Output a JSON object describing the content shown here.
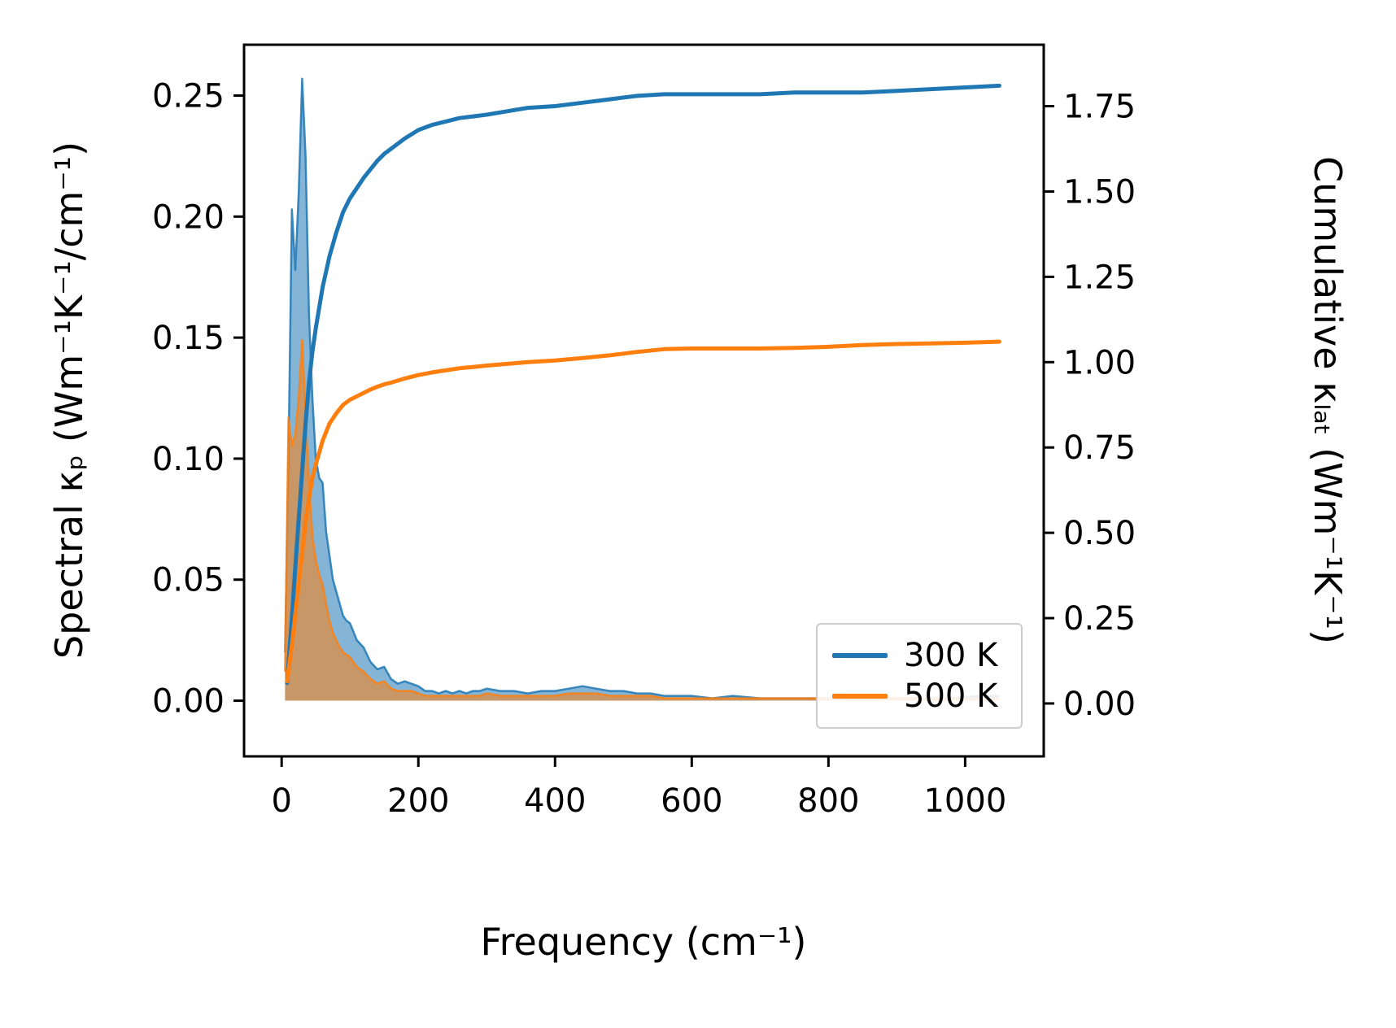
{
  "figure": {
    "background": "#ffffff"
  },
  "chart_data": {
    "type": "line+area",
    "title": "",
    "xlabel": "Frequency (cm⁻¹)",
    "ylabel_left": "Spectral κₚ (Wm⁻¹K⁻¹/cm⁻¹)",
    "ylabel_right": "Cumulative κₗₐₜ (Wm⁻¹K⁻¹)",
    "grid": false,
    "xlim": [
      -55,
      1115
    ],
    "ylim_left": [
      -0.023,
      0.271
    ],
    "ylim_right": [
      -0.155,
      1.93
    ],
    "x_ticks": [
      0,
      200,
      400,
      600,
      800,
      1000
    ],
    "x_tick_labels": [
      "0",
      "200",
      "400",
      "600",
      "800",
      "1000"
    ],
    "y_ticks_left": [
      0.0,
      0.05,
      0.1,
      0.15,
      0.2,
      0.25
    ],
    "y_tick_labels_left": [
      "0.00",
      "0.05",
      "0.10",
      "0.15",
      "0.20",
      "0.25"
    ],
    "y_ticks_right": [
      0.0,
      0.25,
      0.5,
      0.75,
      1.0,
      1.25,
      1.5,
      1.75
    ],
    "y_tick_labels_right": [
      "0.00",
      "0.25",
      "0.50",
      "0.75",
      "1.00",
      "1.25",
      "1.50",
      "1.75"
    ],
    "legend": {
      "position": "lower right",
      "entries": [
        {
          "label": "300 K",
          "color": "#1f77b4"
        },
        {
          "label": "500 K",
          "color": "#ff7f0e"
        }
      ]
    },
    "series": [
      {
        "name": "300 K spectral",
        "axis": "left",
        "style": "area",
        "color": "#1f77b4",
        "fill_opacity": 0.55,
        "x": [
          5,
          10,
          15,
          20,
          25,
          30,
          35,
          40,
          45,
          50,
          55,
          60,
          65,
          70,
          75,
          80,
          85,
          90,
          95,
          100,
          110,
          120,
          130,
          140,
          150,
          160,
          170,
          180,
          190,
          200,
          210,
          220,
          230,
          240,
          250,
          260,
          270,
          280,
          290,
          300,
          320,
          340,
          360,
          380,
          400,
          420,
          440,
          460,
          480,
          500,
          520,
          540,
          560,
          580,
          600,
          630,
          660,
          700,
          740,
          780,
          820,
          860,
          900,
          940,
          980,
          1020,
          1050
        ],
        "y": [
          0.02,
          0.1,
          0.203,
          0.178,
          0.21,
          0.257,
          0.225,
          0.16,
          0.125,
          0.1,
          0.092,
          0.09,
          0.07,
          0.06,
          0.05,
          0.045,
          0.04,
          0.035,
          0.033,
          0.032,
          0.025,
          0.022,
          0.016,
          0.013,
          0.014,
          0.009,
          0.007,
          0.008,
          0.007,
          0.006,
          0.004,
          0.004,
          0.003,
          0.004,
          0.003,
          0.004,
          0.003,
          0.004,
          0.004,
          0.005,
          0.004,
          0.004,
          0.003,
          0.004,
          0.004,
          0.005,
          0.006,
          0.005,
          0.004,
          0.004,
          0.003,
          0.003,
          0.002,
          0.002,
          0.002,
          0.001,
          0.002,
          0.001,
          0.001,
          0.001,
          0.001,
          0.001,
          0.001,
          0.001,
          0.001,
          0.002,
          0.002
        ]
      },
      {
        "name": "500 K spectral",
        "axis": "left",
        "style": "area",
        "color": "#ff7f0e",
        "fill_opacity": 0.55,
        "x": [
          5,
          10,
          15,
          20,
          25,
          30,
          35,
          40,
          45,
          50,
          55,
          60,
          65,
          70,
          75,
          80,
          85,
          90,
          95,
          100,
          110,
          120,
          130,
          140,
          150,
          160,
          170,
          180,
          190,
          200,
          210,
          220,
          230,
          240,
          250,
          260,
          270,
          280,
          290,
          300,
          320,
          340,
          360,
          380,
          400,
          420,
          440,
          460,
          480,
          500,
          520,
          540,
          560,
          580,
          600,
          630,
          660,
          700,
          740,
          780,
          820,
          860,
          900,
          940,
          980,
          1020,
          1050
        ],
        "y": [
          0.012,
          0.117,
          0.105,
          0.11,
          0.125,
          0.149,
          0.118,
          0.09,
          0.068,
          0.058,
          0.052,
          0.048,
          0.04,
          0.033,
          0.028,
          0.025,
          0.022,
          0.02,
          0.019,
          0.018,
          0.014,
          0.012,
          0.009,
          0.007,
          0.008,
          0.005,
          0.004,
          0.004,
          0.004,
          0.003,
          0.002,
          0.002,
          0.002,
          0.002,
          0.002,
          0.002,
          0.002,
          0.002,
          0.002,
          0.003,
          0.002,
          0.002,
          0.002,
          0.002,
          0.002,
          0.003,
          0.003,
          0.003,
          0.002,
          0.002,
          0.002,
          0.002,
          0.001,
          0.001,
          0.001,
          0.001,
          0.001,
          0.001,
          0.001,
          0.001,
          0.001,
          0.001,
          0.001,
          0.001,
          0.001,
          0.001,
          0.001
        ]
      },
      {
        "name": "300 K cumulative",
        "axis": "right",
        "style": "line",
        "color": "#1f77b4",
        "x": [
          8,
          15,
          20,
          25,
          30,
          35,
          40,
          45,
          50,
          60,
          70,
          80,
          90,
          100,
          110,
          120,
          130,
          140,
          150,
          160,
          180,
          200,
          220,
          240,
          260,
          280,
          300,
          330,
          360,
          400,
          440,
          480,
          520,
          560,
          600,
          650,
          700,
          750,
          800,
          850,
          900,
          950,
          1000,
          1050
        ],
        "y": [
          0.06,
          0.25,
          0.4,
          0.54,
          0.68,
          0.82,
          0.94,
          1.03,
          1.1,
          1.22,
          1.31,
          1.38,
          1.44,
          1.48,
          1.51,
          1.54,
          1.565,
          1.59,
          1.61,
          1.625,
          1.655,
          1.68,
          1.695,
          1.705,
          1.715,
          1.72,
          1.725,
          1.735,
          1.745,
          1.75,
          1.76,
          1.77,
          1.78,
          1.785,
          1.785,
          1.785,
          1.785,
          1.79,
          1.79,
          1.79,
          1.795,
          1.8,
          1.805,
          1.81
        ]
      },
      {
        "name": "500 K cumulative",
        "axis": "right",
        "style": "line",
        "color": "#ff7f0e",
        "x": [
          8,
          15,
          20,
          25,
          30,
          35,
          40,
          45,
          50,
          60,
          70,
          80,
          90,
          100,
          110,
          120,
          130,
          140,
          150,
          160,
          180,
          200,
          220,
          240,
          260,
          280,
          300,
          330,
          360,
          400,
          440,
          480,
          520,
          560,
          600,
          650,
          700,
          750,
          800,
          850,
          900,
          950,
          1000,
          1050
        ],
        "y": [
          0.065,
          0.17,
          0.26,
          0.35,
          0.44,
          0.53,
          0.6,
          0.66,
          0.7,
          0.77,
          0.82,
          0.85,
          0.875,
          0.89,
          0.9,
          0.91,
          0.92,
          0.928,
          0.935,
          0.94,
          0.952,
          0.962,
          0.97,
          0.976,
          0.982,
          0.986,
          0.99,
          0.995,
          1.0,
          1.005,
          1.012,
          1.02,
          1.03,
          1.038,
          1.04,
          1.04,
          1.04,
          1.042,
          1.045,
          1.05,
          1.053,
          1.055,
          1.057,
          1.06
        ]
      }
    ]
  }
}
